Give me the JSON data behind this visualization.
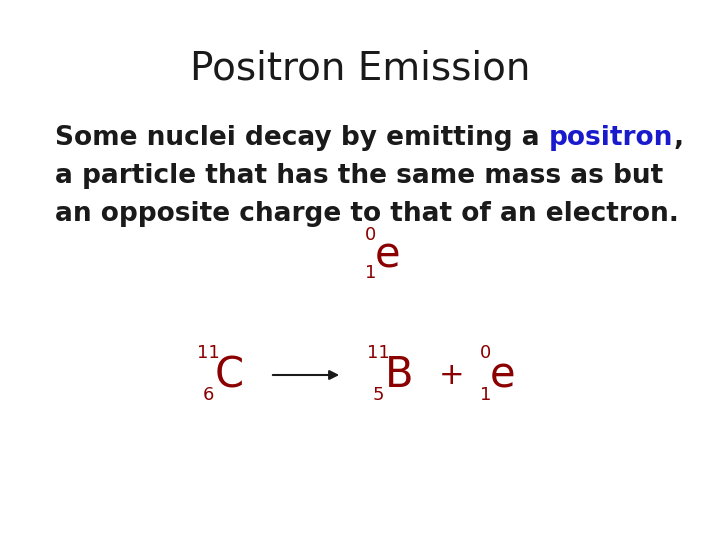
{
  "title": "Positron Emission",
  "title_fontsize": 28,
  "body_fontsize": 19,
  "body_line1_prefix": "Some nuclei decay by emitting a ",
  "body_line1_colored": "positron",
  "body_line1_suffix": ",",
  "body_line2": "a particle that has the same mass as but",
  "body_line3": "an opposite charge to that of an electron.",
  "dark_red": "#8B0000",
  "blue": "#1a1acd",
  "black": "#1a1a1a",
  "white": "#ffffff",
  "big_fs": 30,
  "small_fs": 13
}
